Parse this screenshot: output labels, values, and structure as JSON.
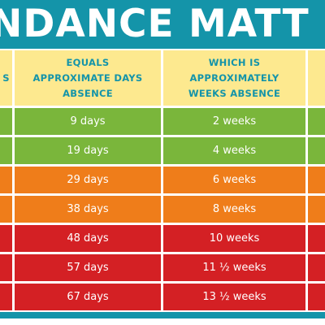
{
  "banner": {
    "title": "NDANCE MATT",
    "color": "#1494a9"
  },
  "table": {
    "headers": {
      "col0": "S",
      "col1": "EQUALS APPROXIMATE DAYS ABSENCE",
      "col2": "WHICH IS APPROXIMATELY WEEKS ABSENCE",
      "col3": ""
    },
    "header_color": "#fde98f",
    "header_text_color": "#1494a9",
    "rows": [
      {
        "days": "9 days",
        "weeks": "2 weeks",
        "color": "#7ab63b"
      },
      {
        "days": "19 days",
        "weeks": "4 weeks",
        "color": "#7ab63b"
      },
      {
        "days": "29 days",
        "weeks": "6 weeks",
        "color": "#ef7d1a"
      },
      {
        "days": "38 days",
        "weeks": "8 weeks",
        "color": "#ef7d1a"
      },
      {
        "days": "48 days",
        "weeks": "10 weeks",
        "color": "#d42024"
      },
      {
        "days": "57 days",
        "weeks": "11 ½ weeks",
        "color": "#d42024"
      },
      {
        "days": "67 days",
        "weeks": "13 ½ weeks",
        "color": "#d42024"
      }
    ]
  }
}
